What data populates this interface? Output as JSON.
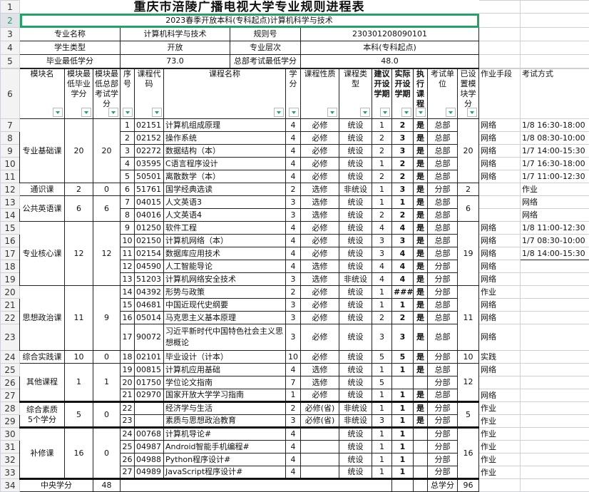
{
  "title": "重庆市涪陵广播电视大学专业规则进程表",
  "subtitle": "2023春季开放本科(专科起点)计算机科学与技术",
  "info": {
    "major_label": "专业名称",
    "major": "计算机科学与技术",
    "rule_label": "规则号",
    "rule": "230301208090101",
    "student_type_label": "学生类型",
    "student_type": "开放",
    "level_label": "专业层次",
    "level": "本科(专科起点)",
    "min_credit_label": "毕业最低学分",
    "min_credit": "73.0",
    "hq_min_label": "总部考试最低学分",
    "hq_min": "48.0"
  },
  "headers": [
    "模块名",
    "模块最低毕业学分",
    "模块最低总部考试学分",
    "序号",
    "课程代码",
    "课程名称",
    "学分",
    "课程性质",
    "课程类型",
    "建议开设学期",
    "实际开设学期",
    "执行课程",
    "考试单位",
    "已设置模块学分",
    "作业手段",
    "考试方式"
  ],
  "modules": [
    {
      "name": "专业基础课",
      "min": "20",
      "exam": "20",
      "set": "20",
      "courses": [
        [
          "1",
          "02151",
          "计算机组成原理",
          "4",
          "必修",
          "统设",
          "1",
          "2",
          "是",
          "总部",
          "网络",
          "1/8 16:30-18:00"
        ],
        [
          "2",
          "02152",
          "操作系统",
          "4",
          "必修",
          "统设",
          "2",
          "3",
          "是",
          "总部",
          "网络",
          "1/8 08:30-10:00"
        ],
        [
          "3",
          "02272",
          "数据结构（本）",
          "4",
          "必修",
          "统设",
          "2",
          "3",
          "是",
          "总部",
          "网络",
          "1/7 14:00-15:30"
        ],
        [
          "4",
          "03595",
          "C语言程序设计",
          "4",
          "必修",
          "统设",
          "1",
          "2",
          "是",
          "总部",
          "网络",
          "1/7 16:30-18:00"
        ],
        [
          "5",
          "50501",
          "离散数学（本）",
          "4",
          "必修",
          "统设",
          "2",
          "2",
          "是",
          "总部",
          "网络",
          "1/7 11:00-12:30"
        ]
      ]
    },
    {
      "name": "通识课",
      "min": "2",
      "exam": "0",
      "set": "2",
      "courses": [
        [
          "6",
          "51761",
          "国学经典选读",
          "2",
          "选修",
          "非统设",
          "1",
          "3",
          "是",
          "分部",
          "",
          "作业"
        ]
      ]
    },
    {
      "name": "公共英语课",
      "min": "6",
      "exam": "6",
      "set": "6",
      "courses": [
        [
          "7",
          "04015",
          "人文英语3",
          "3",
          "选修",
          "统设",
          "1",
          "1",
          "是",
          "总部",
          "",
          "网络"
        ],
        [
          "8",
          "04016",
          "人文英语4",
          "3",
          "选修",
          "统设",
          "2",
          "2",
          "是",
          "总部",
          "",
          "网络"
        ]
      ]
    },
    {
      "name": "专业核心课",
      "min": "12",
      "exam": "12",
      "set": "19",
      "courses": [
        [
          "9",
          "01250",
          "软件工程",
          "4",
          "必修",
          "统设",
          "4",
          "4",
          "是",
          "总部",
          "网络",
          "1/8 11:00-12:30"
        ],
        [
          "10",
          "02150",
          "计算机网络（本）",
          "4",
          "必修",
          "统设",
          "3",
          "3",
          "是",
          "总部",
          "网络",
          "1/7 08:30-10:00"
        ],
        [
          "11",
          "02154",
          "数据库应用技术",
          "4",
          "必修",
          "统设",
          "3",
          "4",
          "是",
          "总部",
          "网络",
          "1/8 14:00-15:30"
        ],
        [
          "12",
          "04590",
          "人工智能导论",
          "4",
          "选修",
          "统设",
          "4",
          "4",
          "是",
          "分部",
          "网络",
          ""
        ],
        [
          "13",
          "51203",
          "计算机网络安全技术",
          "3",
          "选修",
          "非统设",
          "4",
          "4",
          "是",
          "分部",
          "网络",
          ""
        ]
      ]
    },
    {
      "name": "思想政治课",
      "min": "11",
      "exam": "9",
      "set": "11",
      "courses": [
        [
          "14",
          "04392",
          "形势与政策",
          "2",
          "必修",
          "统设",
          "1",
          "###",
          "是",
          "分部",
          "作业",
          ""
        ],
        [
          "15",
          "04681",
          "中国近现代史纲要",
          "3",
          "必修",
          "统设",
          "1",
          "1",
          "是",
          "总部",
          "网络",
          ""
        ],
        [
          "16",
          "05014",
          "马克思主义基本原理",
          "3",
          "必修",
          "统设",
          "2",
          "2",
          "是",
          "总部",
          "网络",
          ""
        ],
        [
          "17",
          "90072",
          "习近平新时代中国特色社会主义思想概论",
          "3",
          "必修",
          "统设",
          "3",
          "3",
          "是",
          "总部",
          "网络",
          ""
        ]
      ]
    },
    {
      "name": "综合实践课",
      "min": "10",
      "exam": "0",
      "set": "10",
      "courses": [
        [
          "18",
          "02101",
          "毕业设计（计本）",
          "10",
          "必修",
          "统设",
          "5",
          "5",
          "是",
          "分部",
          "实践",
          ""
        ]
      ]
    },
    {
      "name": "其他课程",
      "min": "1",
      "exam": "1",
      "set": "12",
      "courses": [
        [
          "19",
          "00815",
          "计算机应用基础",
          "4",
          "选修",
          "统设",
          "1",
          "1",
          "是",
          "总部",
          "网络",
          ""
        ],
        [
          "20",
          "01750",
          "学位论文指南",
          "7",
          "选修",
          "统设",
          "5",
          "",
          "",
          "分部",
          "",
          ""
        ],
        [
          "21",
          "02970",
          "国家开放大学学习指南",
          "1",
          "必修",
          "统设",
          "1",
          "1",
          "是",
          "总部",
          "网络",
          ""
        ]
      ]
    },
    {
      "name": "综合素质\n5个学分",
      "min": "5",
      "exam": "0",
      "set": "5",
      "courses": [
        [
          "22",
          "",
          "经济学与生活",
          "2",
          "必修(省)",
          "非统设",
          "1",
          "1",
          "是",
          "分部",
          "作业",
          ""
        ],
        [
          "23",
          "",
          "素质与思想政治教育",
          "3",
          "必修(省)",
          "非统设",
          "3",
          "1",
          "是",
          "分部",
          "作业",
          ""
        ]
      ]
    },
    {
      "name": "补修课",
      "min": "16",
      "exam": "0",
      "set": "16",
      "courses": [
        [
          "24",
          "00768",
          "计算机导论#",
          "4",
          "",
          "统设",
          "1",
          "1",
          "",
          "分部",
          "作业",
          ""
        ],
        [
          "25",
          "04987",
          "Android智能手机编程#",
          "4",
          "",
          "统设",
          "1",
          "1",
          "",
          "分部",
          "作业",
          ""
        ],
        [
          "26",
          "04988",
          "Python程序设计#",
          "4",
          "",
          "统设",
          "1",
          "1",
          "",
          "分部",
          "作业",
          ""
        ],
        [
          "27",
          "04989",
          "JavaScript程序设计#",
          "4",
          "",
          "统设",
          "1",
          "1",
          "",
          "分部",
          "作业",
          ""
        ]
      ]
    }
  ],
  "footer": {
    "central_label": "中央学分",
    "central": "48",
    "total_label": "总学分",
    "total": "96"
  },
  "colors": {
    "selection": "#21a366",
    "filter_arrow": "#1ea36c"
  }
}
